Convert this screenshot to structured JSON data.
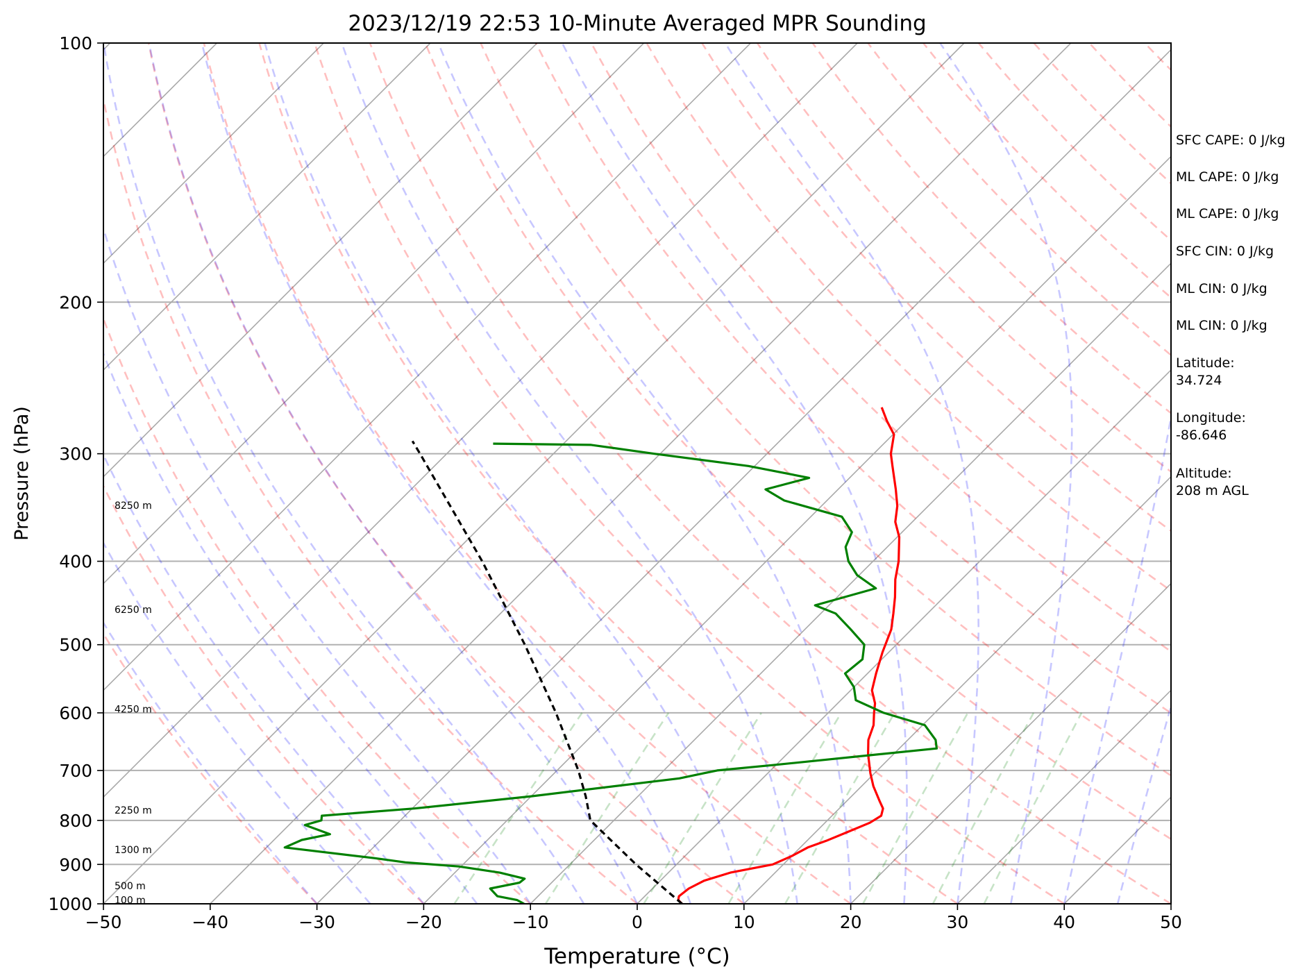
{
  "chart_data": {
    "type": "line",
    "title": "2023/12/19 22:53 10-Minute Averaged MPR Sounding",
    "xlabel": "Temperature (°C)",
    "ylabel": "Pressure (hPa)",
    "xlim": [
      -50,
      50
    ],
    "ylim": [
      1000,
      100
    ],
    "yscale": "log",
    "skew": true,
    "grid": true,
    "x_ticks": [
      -50,
      -40,
      -30,
      -20,
      -10,
      0,
      10,
      20,
      30,
      40,
      50
    ],
    "x_tick_labels": [
      "−50",
      "−40",
      "−30",
      "−20",
      "−10",
      "0",
      "10",
      "20",
      "30",
      "40",
      "50"
    ],
    "y_ticks": [
      100,
      200,
      300,
      400,
      500,
      600,
      700,
      800,
      900,
      1000
    ],
    "y_tick_labels": [
      "100",
      "200",
      "300",
      "400",
      "500",
      "600",
      "700",
      "800",
      "900",
      "1000"
    ],
    "height_labels": [
      {
        "text": "8250 m",
        "pressure": 345
      },
      {
        "text": "6250 m",
        "pressure": 456
      },
      {
        "text": "4250 m",
        "pressure": 595
      },
      {
        "text": "2250 m",
        "pressure": 780
      },
      {
        "text": "1300 m",
        "pressure": 867
      },
      {
        "text": "500 m",
        "pressure": 955
      },
      {
        "text": "100 m",
        "pressure": 992
      }
    ],
    "series": [
      {
        "color": "#ff0000",
        "points": [
          {
            "p": 1000,
            "t": 4.2
          },
          {
            "p": 990,
            "t": 3.5
          },
          {
            "p": 980,
            "t": 3.2
          },
          {
            "p": 960,
            "t": 3.4
          },
          {
            "p": 940,
            "t": 4.1
          },
          {
            "p": 920,
            "t": 5.8
          },
          {
            "p": 900,
            "t": 9.0
          },
          {
            "p": 880,
            "t": 10.0
          },
          {
            "p": 860,
            "t": 10.7
          },
          {
            "p": 845,
            "t": 11.8
          },
          {
            "p": 825,
            "t": 13.0
          },
          {
            "p": 805,
            "t": 14.2
          },
          {
            "p": 790,
            "t": 14.6
          },
          {
            "p": 775,
            "t": 14.1
          },
          {
            "p": 760,
            "t": 13.1
          },
          {
            "p": 730,
            "t": 11.1
          },
          {
            "p": 705,
            "t": 9.6
          },
          {
            "p": 670,
            "t": 7.6
          },
          {
            "p": 645,
            "t": 6.3
          },
          {
            "p": 620,
            "t": 5.4
          },
          {
            "p": 600,
            "t": 4.3
          },
          {
            "p": 585,
            "t": 3.5
          },
          {
            "p": 565,
            "t": 2.0
          },
          {
            "p": 540,
            "t": 0.8
          },
          {
            "p": 510,
            "t": -0.6
          },
          {
            "p": 480,
            "t": -1.9
          },
          {
            "p": 460,
            "t": -3.2
          },
          {
            "p": 440,
            "t": -4.6
          },
          {
            "p": 420,
            "t": -6.2
          },
          {
            "p": 400,
            "t": -7.6
          },
          {
            "p": 375,
            "t": -9.8
          },
          {
            "p": 360,
            "t": -11.6
          },
          {
            "p": 345,
            "t": -12.9
          },
          {
            "p": 330,
            "t": -14.6
          },
          {
            "p": 310,
            "t": -17.1
          },
          {
            "p": 300,
            "t": -18.4
          },
          {
            "p": 285,
            "t": -19.9
          },
          {
            "p": 275,
            "t": -21.8
          },
          {
            "p": 265,
            "t": -23.6
          }
        ]
      },
      {
        "color": "#008000",
        "points": [
          {
            "p": 1000,
            "t": -10.6
          },
          {
            "p": 990,
            "t": -11.6
          },
          {
            "p": 980,
            "t": -13.8
          },
          {
            "p": 960,
            "t": -15.2
          },
          {
            "p": 945,
            "t": -13.0
          },
          {
            "p": 935,
            "t": -12.9
          },
          {
            "p": 920,
            "t": -15.8
          },
          {
            "p": 905,
            "t": -20.2
          },
          {
            "p": 895,
            "t": -25.6
          },
          {
            "p": 885,
            "t": -28.9
          },
          {
            "p": 860,
            "t": -38.3
          },
          {
            "p": 843,
            "t": -37.4
          },
          {
            "p": 830,
            "t": -35.3
          },
          {
            "p": 810,
            "t": -38.5
          },
          {
            "p": 800,
            "t": -37.4
          },
          {
            "p": 790,
            "t": -37.8
          },
          {
            "p": 775,
            "t": -29.8
          },
          {
            "p": 750,
            "t": -20.0
          },
          {
            "p": 715,
            "t": -7.8
          },
          {
            "p": 700,
            "t": -5.0
          },
          {
            "p": 690,
            "t": -0.3
          },
          {
            "p": 660,
            "t": 13.5
          },
          {
            "p": 645,
            "t": 12.6
          },
          {
            "p": 620,
            "t": 10.2
          },
          {
            "p": 600,
            "t": 5.2
          },
          {
            "p": 580,
            "t": 1.4
          },
          {
            "p": 560,
            "t": 0.0
          },
          {
            "p": 540,
            "t": -2.1
          },
          {
            "p": 520,
            "t": -1.8
          },
          {
            "p": 500,
            "t": -3.0
          },
          {
            "p": 480,
            "t": -5.7
          },
          {
            "p": 460,
            "t": -8.6
          },
          {
            "p": 450,
            "t": -11.3
          },
          {
            "p": 430,
            "t": -7.2
          },
          {
            "p": 415,
            "t": -10.2
          },
          {
            "p": 400,
            "t": -12.3
          },
          {
            "p": 385,
            "t": -13.9
          },
          {
            "p": 370,
            "t": -14.7
          },
          {
            "p": 355,
            "t": -17.1
          },
          {
            "p": 340,
            "t": -24.0
          },
          {
            "p": 330,
            "t": -26.8
          },
          {
            "p": 320,
            "t": -23.8
          },
          {
            "p": 310,
            "t": -30.6
          },
          {
            "p": 300,
            "t": -40.6
          },
          {
            "p": 293,
            "t": -47.3
          },
          {
            "p": 292,
            "t": -56.6
          }
        ]
      },
      {
        "color": "#000000",
        "dashed": true,
        "points": [
          {
            "p": 1000,
            "t": 4.2
          },
          {
            "p": 900,
            "t": -3.8
          },
          {
            "p": 800,
            "t": -12.2
          },
          {
            "p": 750,
            "t": -14.9
          },
          {
            "p": 700,
            "t": -18.0
          },
          {
            "p": 600,
            "t": -25.5
          },
          {
            "p": 500,
            "t": -34.8
          },
          {
            "p": 400,
            "t": -46.6
          },
          {
            "p": 300,
            "t": -62.5
          },
          {
            "p": 290,
            "t": -64.4
          }
        ]
      }
    ],
    "background_lines": {
      "isotherms": {
        "color": "#a9a9a9"
      },
      "dry_adiabats": {
        "color": "#ff0000",
        "dashed": true
      },
      "moist_adiabats": {
        "color": "#0000ff",
        "dashed": true
      },
      "mixing_ratio": {
        "color": "#008000",
        "dashed": true
      }
    }
  },
  "side_panel": {
    "sfc_cape": "SFC CAPE: 0 J/kg",
    "ml_cape": "ML CAPE: 0 J/kg",
    "ml_cape_2": "ML CAPE: 0 J/kg",
    "sfc_cin": "SFC CIN: 0 J/kg",
    "ml_cin": "ML CIN: 0 J/kg",
    "ml_cin_2": "ML CIN: 0 J/kg",
    "latitude": "Latitude:\n34.724",
    "longitude": "Longitude:\n-86.646",
    "altitude": "Altitude:\n208 m AGL"
  }
}
